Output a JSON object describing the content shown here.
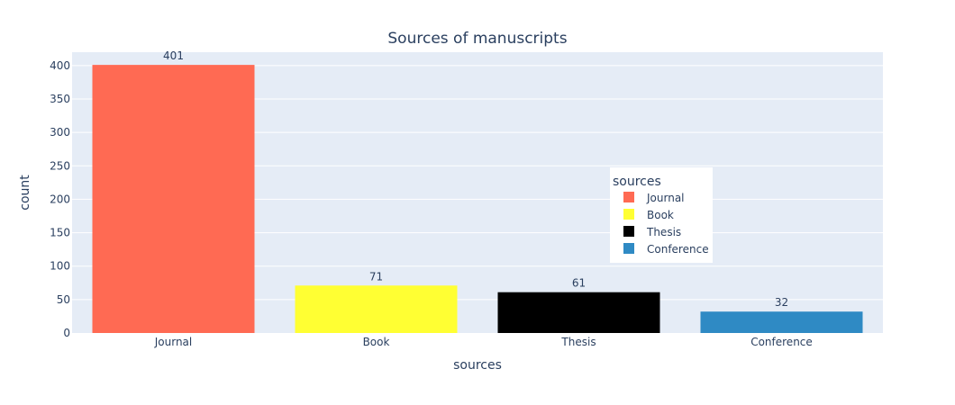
{
  "chart_data": {
    "type": "bar",
    "title": "Sources of manuscripts",
    "xlabel": "sources",
    "ylabel": "count",
    "categories": [
      "Journal",
      "Book",
      "Thesis",
      "Conference"
    ],
    "values": [
      401,
      71,
      61,
      32
    ],
    "data_labels": [
      "401",
      "71",
      "61",
      "32"
    ],
    "colors": [
      "#ff6a53",
      "#ffff33",
      "#000000",
      "#2f8ac4"
    ],
    "ylim": [
      0,
      420
    ],
    "yticks": [
      0,
      50,
      100,
      150,
      200,
      250,
      300,
      350,
      400
    ],
    "grid": true,
    "legend": {
      "title": "sources",
      "placement": "inside-center-right",
      "items": [
        "Journal",
        "Book",
        "Thesis",
        "Conference"
      ]
    }
  },
  "colors": {
    "plot_background": "#e5ecf6",
    "gridline": "#ffffff",
    "text": "#2a3f5f"
  }
}
